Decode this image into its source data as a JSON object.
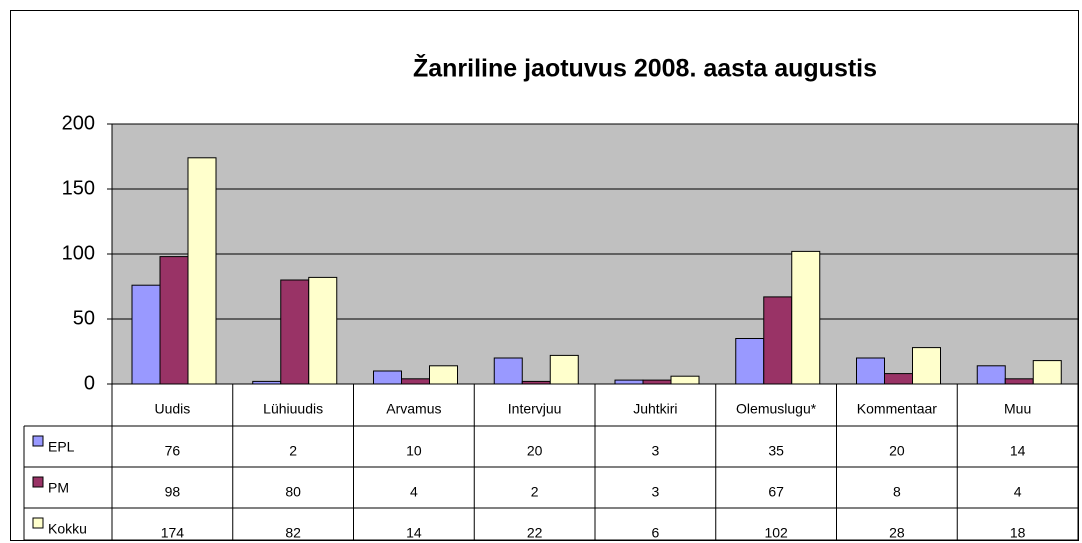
{
  "chart_data": {
    "type": "bar",
    "title": "Žanriline jaotuvus 2008. aasta augustis",
    "categories": [
      "Uudis",
      "Lühiuudis",
      "Arvamus",
      "Intervjuu",
      "Juhtkiri",
      "Olemuslugu*",
      "Kommentaar",
      "Muu"
    ],
    "series": [
      {
        "name": "EPL",
        "color": "#9999ff",
        "values": [
          76,
          2,
          10,
          20,
          3,
          35,
          20,
          14
        ]
      },
      {
        "name": "PM",
        "color": "#993366",
        "values": [
          98,
          80,
          4,
          2,
          3,
          67,
          8,
          4
        ]
      },
      {
        "name": "Kokku",
        "color": "#ffffcc",
        "values": [
          174,
          82,
          14,
          22,
          6,
          102,
          28,
          18
        ]
      }
    ],
    "ylim": [
      0,
      200
    ],
    "yticks": [
      0,
      50,
      100,
      150,
      200
    ],
    "grid": true,
    "plot_background": "#c0c0c0"
  }
}
